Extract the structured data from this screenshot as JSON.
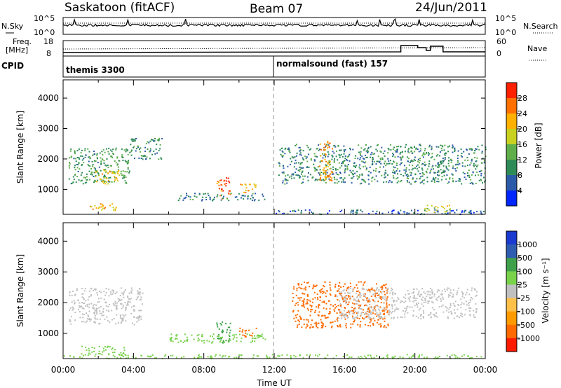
{
  "header": {
    "station": "Saskatoon (fitACF)",
    "beam": "Beam 07",
    "date": "24/Jun/2011"
  },
  "noise_panel": {
    "left_label": "N.Sky",
    "left_ticks": [
      "10^5",
      "10^0"
    ],
    "right_label": "N.Search",
    "right_ticks": [
      "10^5",
      "10^0"
    ]
  },
  "freq_panel": {
    "left_label_1": "Freq.",
    "left_label_2": "[MHz]",
    "left_ticks": [
      "18",
      "8"
    ],
    "right_label": "Nave",
    "right_ticks": [
      "60",
      "0"
    ]
  },
  "cpid_panel": {
    "label": "CPID",
    "programs": [
      {
        "name": "themis 3300",
        "start_hour": 0
      },
      {
        "name": "normalsound (fast) 157",
        "start_hour": 12
      }
    ]
  },
  "colors": {
    "power": [
      "#0026ff",
      "#2b5ba8",
      "#2e8b57",
      "#5fae4a",
      "#c8d020",
      "#ffb000",
      "#ff7000",
      "#ff2000"
    ],
    "velocity": [
      "#ff1a00",
      "#ff6a00",
      "#ff9a00",
      "#ffc04a",
      "#c0c0c0",
      "#78d24a",
      "#3ea04a",
      "#2e5cb0",
      "#1a3ad0"
    ]
  },
  "chart_data": [
    {
      "type": "heatmap",
      "title": "Power",
      "xlabel": "",
      "ylabel": "Slant Range [km]",
      "x_range_hours": [
        0,
        24
      ],
      "xticks": [
        "00:00",
        "04:00",
        "08:00",
        "12:00",
        "16:00",
        "20:00",
        "00:00"
      ],
      "y_range_km": [
        180,
        4600
      ],
      "yticks": [
        1000,
        2000,
        3000,
        4000
      ],
      "colorbar": {
        "label": "Power [dB]",
        "ticks": [
          "4",
          "8",
          "12",
          "16",
          "20",
          "24",
          "28"
        ],
        "range": [
          0,
          30
        ]
      },
      "echo_regions": [
        {
          "t0": 0.3,
          "t1": 3.8,
          "r0": 1200,
          "r1": 2400,
          "value": 11
        },
        {
          "t0": 1.8,
          "t1": 3.2,
          "r0": 1200,
          "r1": 1700,
          "value": 19
        },
        {
          "t0": 1.5,
          "t1": 3.0,
          "r0": 330,
          "r1": 600,
          "value": 20
        },
        {
          "t0": 3.8,
          "t1": 5.6,
          "r0": 2000,
          "r1": 2700,
          "value": 9
        },
        {
          "t0": 8.7,
          "t1": 9.5,
          "r0": 700,
          "r1": 1400,
          "value": 26
        },
        {
          "t0": 10.0,
          "t1": 11.0,
          "r0": 900,
          "r1": 1200,
          "value": 21
        },
        {
          "t0": 6.5,
          "t1": 11.5,
          "r0": 650,
          "r1": 900,
          "value": 8
        },
        {
          "t0": 12.2,
          "t1": 24.0,
          "r0": 1200,
          "r1": 2500,
          "value": 9
        },
        {
          "t0": 14.5,
          "t1": 15.3,
          "r0": 1300,
          "r1": 2600,
          "value": 22
        },
        {
          "t0": 12.0,
          "t1": 24.0,
          "r0": 200,
          "r1": 350,
          "value": 6
        },
        {
          "t0": 20.5,
          "t1": 22.0,
          "r0": 250,
          "r1": 500,
          "value": 18
        }
      ]
    },
    {
      "type": "heatmap",
      "title": "Velocity",
      "xlabel": "Time UT",
      "ylabel": "Slant Range [km]",
      "x_range_hours": [
        0,
        24
      ],
      "xticks": [
        "00:00",
        "04:00",
        "08:00",
        "12:00",
        "16:00",
        "20:00",
        "00:00"
      ],
      "y_range_km": [
        180,
        4600
      ],
      "yticks": [
        1000,
        2000,
        3000,
        4000
      ],
      "colorbar": {
        "label": "Velocity [m s⁻¹]",
        "ticks": [
          "1000",
          "500",
          "100",
          "25",
          "-25",
          "-100",
          "-500",
          "-1000"
        ]
      },
      "echo_regions": [
        {
          "t0": 0.3,
          "t1": 4.5,
          "r0": 1300,
          "r1": 2500,
          "value": 0
        },
        {
          "t0": 1.0,
          "t1": 3.5,
          "r0": 300,
          "r1": 600,
          "value": 60
        },
        {
          "t0": 6.0,
          "t1": 11.5,
          "r0": 700,
          "r1": 1000,
          "value": 40
        },
        {
          "t0": 8.7,
          "t1": 9.5,
          "r0": 700,
          "r1": 1400,
          "value": 120
        },
        {
          "t0": 10.0,
          "t1": 11.0,
          "r0": 900,
          "r1": 1200,
          "value": -150
        },
        {
          "t0": 13.0,
          "t1": 18.5,
          "r0": 1200,
          "r1": 2700,
          "value": -250
        },
        {
          "t0": 15.5,
          "t1": 23.5,
          "r0": 1500,
          "r1": 2500,
          "value": 0
        },
        {
          "t0": 0.0,
          "t1": 24.0,
          "r0": 200,
          "r1": 330,
          "value": 50
        }
      ]
    }
  ]
}
